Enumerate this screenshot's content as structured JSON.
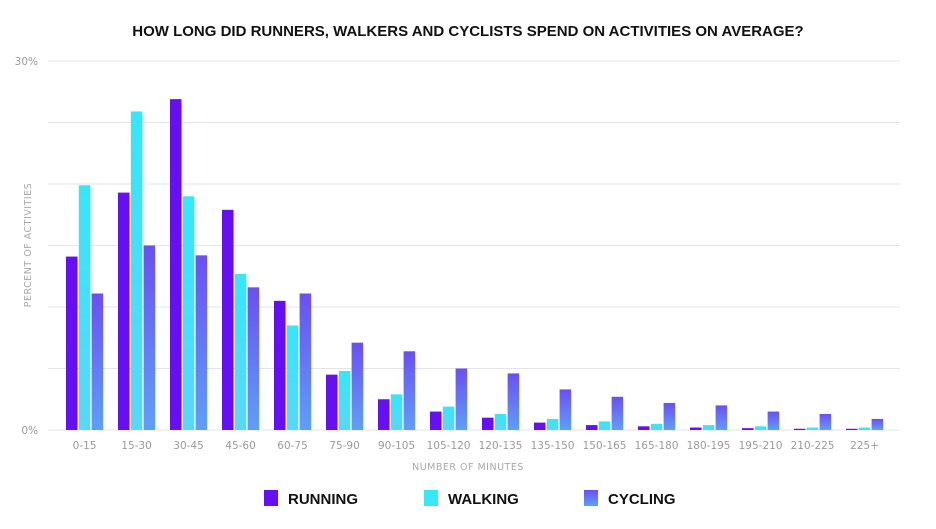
{
  "chart_data": {
    "type": "bar",
    "title": "HOW LONG DID RUNNERS, WALKERS AND CYCLISTS SPEND ON ACTIVITIES ON AVERAGE?",
    "xlabel": "NUMBER OF MINUTES",
    "ylabel": "PERCENT OF ACTIVITIES",
    "ylim": [
      0,
      30
    ],
    "yticks": [
      "0%",
      "30%"
    ],
    "ytick_values": [
      0,
      30
    ],
    "gridlines": [
      0,
      5,
      10,
      15,
      20,
      25,
      30
    ],
    "categories": [
      "0-15",
      "15-30",
      "30-45",
      "45-60",
      "60-75",
      "75-90",
      "90-105",
      "105-120",
      "120-135",
      "135-150",
      "150-165",
      "165-180",
      "180-195",
      "195-210",
      "210-225",
      "225+"
    ],
    "series": [
      {
        "name": "RUNNING",
        "color": "#6610f2",
        "values": [
          14.1,
          19.3,
          26.9,
          17.9,
          10.5,
          4.5,
          2.5,
          1.5,
          1.0,
          0.6,
          0.4,
          0.3,
          0.2,
          0.15,
          0.1,
          0.1
        ]
      },
      {
        "name": "WALKING",
        "color": "#39e6fa",
        "values": [
          19.9,
          25.9,
          19.0,
          12.7,
          8.5,
          4.8,
          2.9,
          1.9,
          1.3,
          0.9,
          0.7,
          0.5,
          0.4,
          0.3,
          0.2,
          0.2
        ]
      },
      {
        "name": "CYCLING",
        "color": "#6f6ef5",
        "values": [
          11.1,
          15.0,
          14.2,
          11.6,
          11.1,
          7.1,
          6.4,
          5.0,
          4.6,
          3.3,
          2.7,
          2.2,
          2.0,
          1.5,
          1.3,
          0.9
        ]
      }
    ],
    "grid": true,
    "legend_position": "bottom"
  }
}
